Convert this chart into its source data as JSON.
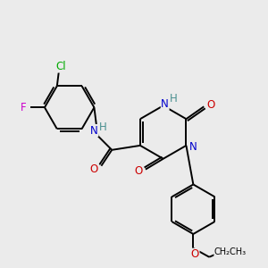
{
  "bg_color": "#ebebeb",
  "atom_colors": {
    "C": "#000000",
    "N": "#0000cc",
    "O": "#cc0000",
    "Cl": "#00aa00",
    "F": "#cc00cc",
    "H": "#4a9090"
  },
  "bond_color": "#000000",
  "font_size": 8.5,
  "figsize": [
    3.0,
    3.0
  ],
  "dpi": 100
}
